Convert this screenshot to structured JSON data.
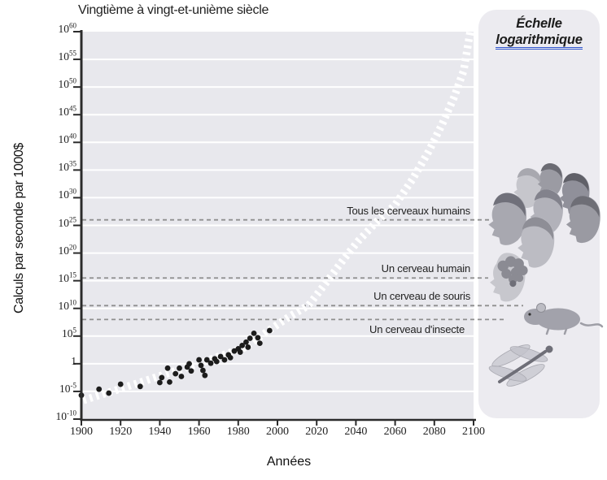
{
  "title": "Vingtième à vingt-et-unième siècle",
  "scale_label": {
    "line1": "Échelle",
    "line2": "logarithmique"
  },
  "chart_data": {
    "type": "scatter",
    "title": "Vingtième à vingt-et-unième siècle",
    "xlabel": "Années",
    "ylabel": "Calculs par seconde par 1000$",
    "x_ticks": [
      1900,
      1920,
      1940,
      1960,
      1980,
      2000,
      2020,
      2040,
      2060,
      2080,
      2100
    ],
    "y_ticks_log10": [
      60,
      55,
      50,
      45,
      40,
      35,
      30,
      25,
      20,
      15,
      10,
      5,
      0,
      -5,
      -10
    ],
    "xlim": [
      1900,
      2100
    ],
    "ylim_log10": [
      -10,
      60
    ],
    "grid": "horizontal white lines every 5 decades",
    "legend_position": "none",
    "scale": "logarithmic (base 10)",
    "thresholds": [
      {
        "label": "Tous les cerveaux humains",
        "log10_value": 26
      },
      {
        "label": "Un cerveau humain",
        "log10_value": 15.5
      },
      {
        "label": "Un cerveau de souris",
        "log10_value": 10.5
      },
      {
        "label": "Un cerveau d'insecte",
        "log10_value": 8
      }
    ],
    "points_year_log10": [
      [
        1900,
        -5.7
      ],
      [
        1909,
        -4.6
      ],
      [
        1914,
        -5.3
      ],
      [
        1920,
        -3.7
      ],
      [
        1930,
        -4.1
      ],
      [
        1940,
        -3.4
      ],
      [
        1941,
        -2.5
      ],
      [
        1944,
        -0.8
      ],
      [
        1945,
        -3.3
      ],
      [
        1948,
        -1.8
      ],
      [
        1950,
        -0.8
      ],
      [
        1951,
        -2.3
      ],
      [
        1954,
        -0.6
      ],
      [
        1955,
        0.0
      ],
      [
        1956,
        -1.3
      ],
      [
        1960,
        0.7
      ],
      [
        1961,
        -0.3
      ],
      [
        1962,
        -1.2
      ],
      [
        1963,
        -2.1
      ],
      [
        1964,
        0.7
      ],
      [
        1966,
        0.1
      ],
      [
        1968,
        0.9
      ],
      [
        1969,
        0.4
      ],
      [
        1971,
        1.3
      ],
      [
        1973,
        0.7
      ],
      [
        1975,
        1.6
      ],
      [
        1976,
        1.1
      ],
      [
        1978,
        2.3
      ],
      [
        1980,
        2.7
      ],
      [
        1981,
        2.1
      ],
      [
        1982,
        3.3
      ],
      [
        1984,
        3.9
      ],
      [
        1985,
        3.0
      ],
      [
        1986,
        4.6
      ],
      [
        1988,
        5.5
      ],
      [
        1990,
        4.7
      ],
      [
        1991,
        3.7
      ],
      [
        1996,
        6.0
      ]
    ],
    "trend_year_log10": [
      [
        1901,
        -6.6
      ],
      [
        1921,
        -4.4
      ],
      [
        1941,
        -2.1
      ],
      [
        1962,
        0.3
      ],
      [
        1983,
        2.9
      ],
      [
        1996,
        6.1
      ],
      [
        2006,
        8.5
      ],
      [
        2016,
        10.6
      ],
      [
        2026,
        15.2
      ],
      [
        2034,
        19.0
      ],
      [
        2041,
        22.1
      ],
      [
        2051,
        25.8
      ],
      [
        2060,
        28.7
      ],
      [
        2069,
        33.4
      ],
      [
        2077,
        38.3
      ],
      [
        2084,
        43.3
      ],
      [
        2090,
        48.1
      ],
      [
        2095,
        53.0
      ],
      [
        2098,
        59.4
      ],
      [
        2100,
        63.5
      ]
    ],
    "illustrations": [
      "human-heads",
      "human-brain",
      "mouse",
      "dragonfly"
    ]
  },
  "colors": {
    "plot_bg": "#e8e8ed",
    "panel_bg": "#ecebf0",
    "grid": "#ffffff",
    "trend_band": "#ffffff",
    "dot": "#1c1c1c",
    "axis": "#2b2b2b",
    "threshold_line": "#8f8f8f",
    "underline_blue": "#2f55cf"
  }
}
